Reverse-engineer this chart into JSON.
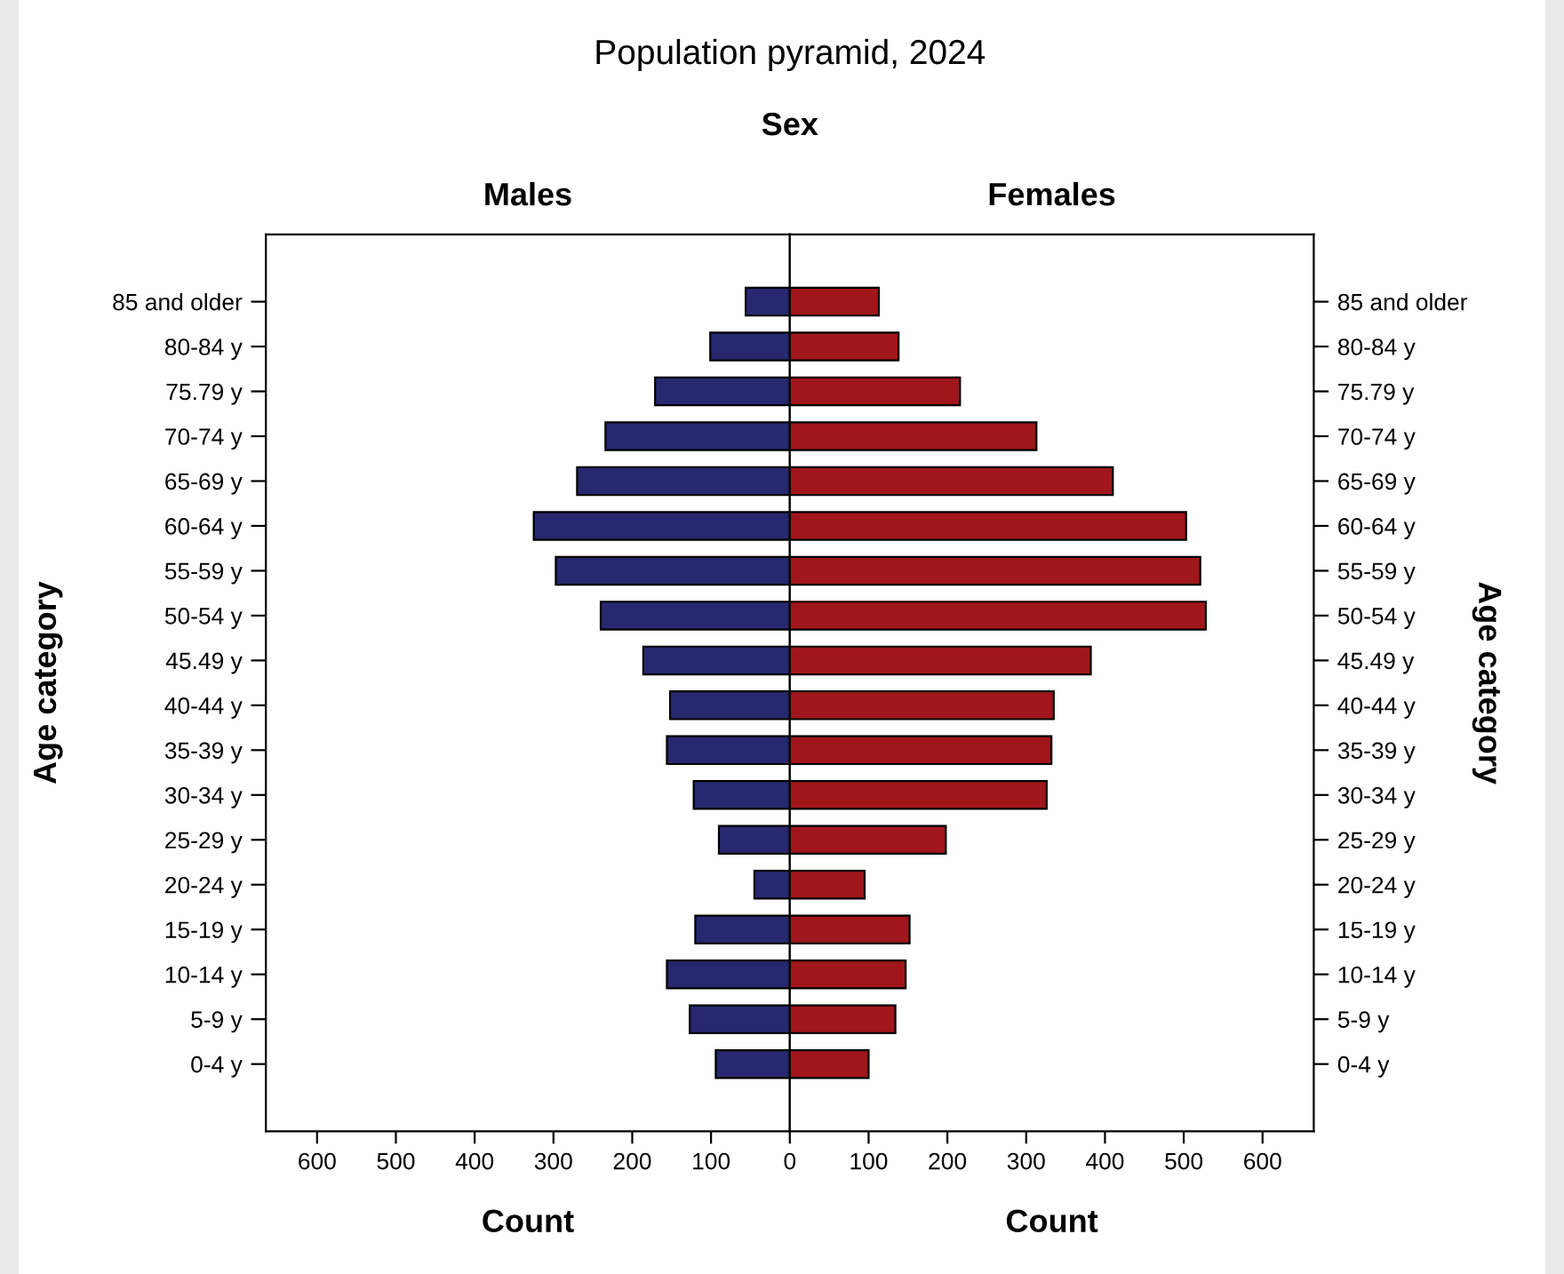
{
  "chart_data": [
    {
      "type": "bar",
      "orientation": "horizontal",
      "title": "Population pyramid, 2024",
      "subtitle": "Sex",
      "xlabel": "Count",
      "ylabel": "Age category",
      "categories": [
        "85 and older",
        "80-84 y",
        "75.79 y",
        "70-74 y",
        "65-69 y",
        "60-64 y",
        "55-59 y",
        "50-54 y",
        "45.49 y",
        "40-44 y",
        "35-39 y",
        "30-34 y",
        "25-29 y",
        "20-24 y",
        "15-19 y",
        "10-14 y",
        "5-9 y",
        "0-4 y"
      ],
      "series": [
        {
          "name": "Males",
          "color": "#27286f",
          "values": [
            56,
            101,
            171,
            234,
            270,
            325,
            297,
            240,
            186,
            152,
            156,
            122,
            90,
            45,
            120,
            156,
            127,
            94
          ]
        }
      ],
      "xlim": [
        665,
        0
      ],
      "xticks": [
        600,
        500,
        400,
        300,
        200,
        100
      ],
      "grid": false,
      "legend": false
    },
    {
      "type": "bar",
      "orientation": "horizontal",
      "xlabel": "Count",
      "ylabel": "Age category",
      "categories": [
        "85 and older",
        "80-84 y",
        "75.79 y",
        "70-74 y",
        "65-69 y",
        "60-64 y",
        "55-59 y",
        "50-54 y",
        "45.49 y",
        "40-44 y",
        "35-39 y",
        "30-34 y",
        "25-29 y",
        "20-24 y",
        "15-19 y",
        "10-14 y",
        "5-9 y",
        "0-4 y"
      ],
      "series": [
        {
          "name": "Females",
          "color": "#a0161a",
          "values": [
            113,
            138,
            216,
            313,
            410,
            503,
            521,
            528,
            382,
            335,
            332,
            326,
            198,
            95,
            152,
            147,
            134,
            100
          ]
        }
      ],
      "xlim": [
        0,
        665
      ],
      "xticks": [
        0,
        100,
        200,
        300,
        400,
        500,
        600
      ],
      "grid": false,
      "legend": false
    }
  ]
}
